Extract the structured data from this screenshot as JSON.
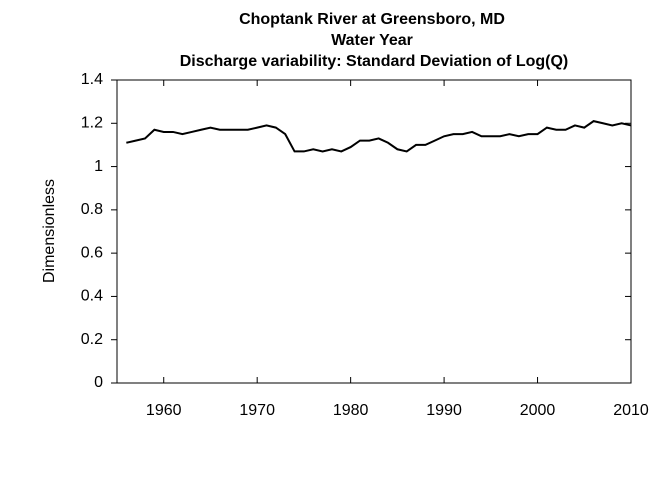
{
  "chart_data": {
    "type": "line",
    "title": "Choptank River at Greensboro, MD",
    "subtitle": "Water Year",
    "subtitle2": "Discharge variability: Standard Deviation of Log(Q)",
    "y_label": "Dimensionless",
    "x": [
      1956,
      1957,
      1958,
      1959,
      1960,
      1961,
      1962,
      1963,
      1964,
      1965,
      1966,
      1967,
      1968,
      1969,
      1970,
      1971,
      1972,
      1973,
      1974,
      1975,
      1976,
      1977,
      1978,
      1979,
      1980,
      1981,
      1982,
      1983,
      1984,
      1985,
      1986,
      1987,
      1988,
      1989,
      1990,
      1991,
      1992,
      1993,
      1994,
      1995,
      1996,
      1997,
      1998,
      1999,
      2000,
      2001,
      2002,
      2003,
      2004,
      2005,
      2006,
      2007,
      2008,
      2009,
      2010
    ],
    "series": [
      {
        "name": "Standard Deviation of Log(Q)",
        "color": "#000000",
        "values": [
          1.11,
          1.12,
          1.13,
          1.17,
          1.16,
          1.16,
          1.15,
          1.16,
          1.17,
          1.18,
          1.17,
          1.17,
          1.17,
          1.17,
          1.18,
          1.19,
          1.18,
          1.15,
          1.07,
          1.07,
          1.08,
          1.07,
          1.08,
          1.07,
          1.09,
          1.12,
          1.12,
          1.13,
          1.11,
          1.08,
          1.07,
          1.1,
          1.1,
          1.12,
          1.14,
          1.15,
          1.15,
          1.16,
          1.14,
          1.14,
          1.14,
          1.15,
          1.14,
          1.15,
          1.15,
          1.18,
          1.17,
          1.17,
          1.19,
          1.18,
          1.21,
          1.2,
          1.19,
          1.2,
          1.19
        ]
      }
    ],
    "xlim": [
      1955,
      2010
    ],
    "xticks": [
      1960,
      1970,
      1980,
      1990,
      2000,
      2010
    ],
    "ylim": [
      0,
      1.4
    ],
    "yticks": [
      0,
      0.2,
      0.4,
      0.6,
      0.8,
      1,
      1.2,
      1.4
    ]
  }
}
